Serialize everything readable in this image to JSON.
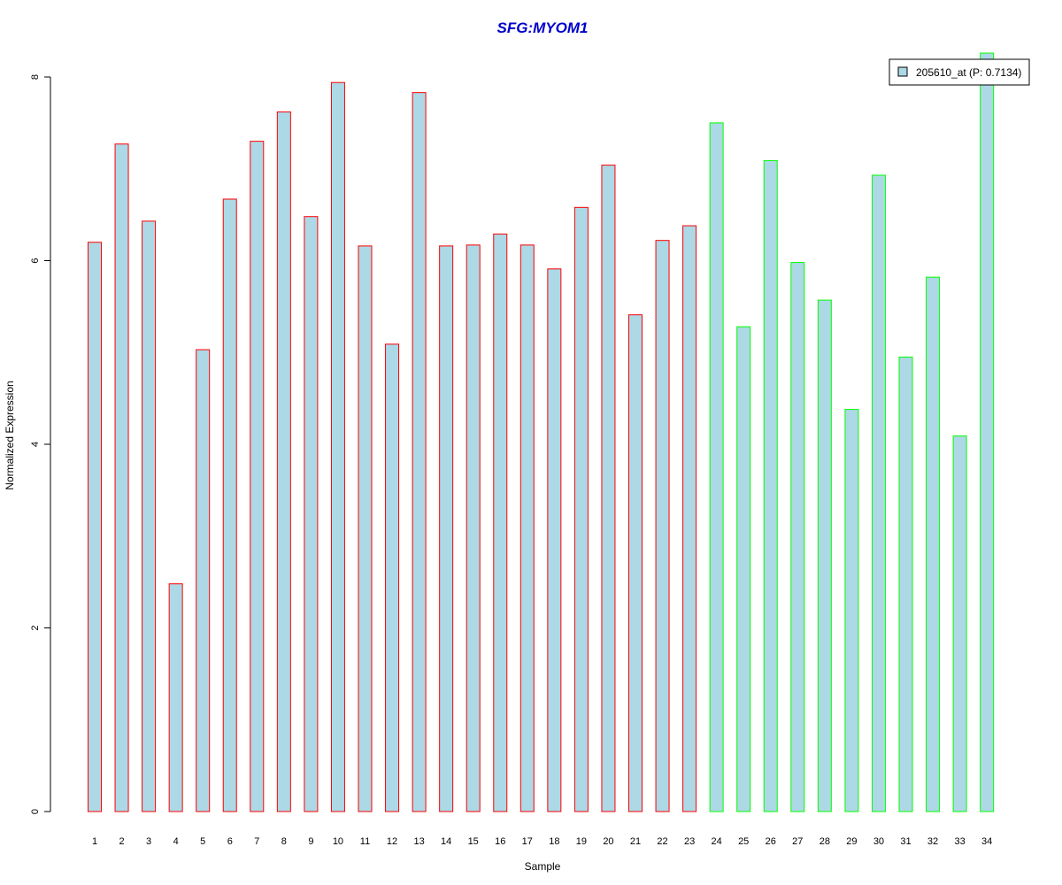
{
  "chart_data": {
    "type": "bar",
    "title": "SFG:MYOM1",
    "xlabel": "Sample",
    "ylabel": "Normalized Expression",
    "categories": [
      "1",
      "2",
      "3",
      "4",
      "5",
      "6",
      "7",
      "8",
      "9",
      "10",
      "11",
      "12",
      "13",
      "14",
      "15",
      "16",
      "17",
      "18",
      "19",
      "20",
      "21",
      "22",
      "23",
      "24",
      "25",
      "26",
      "27",
      "28",
      "29",
      "30",
      "31",
      "32",
      "33",
      "34"
    ],
    "series": [
      {
        "name": "205610_at (P: 0.7134)",
        "values": [
          6.2,
          7.27,
          6.43,
          2.48,
          5.03,
          6.67,
          7.3,
          7.62,
          6.48,
          7.94,
          6.16,
          5.09,
          7.83,
          6.16,
          6.17,
          6.29,
          6.17,
          5.91,
          6.58,
          7.04,
          5.41,
          6.22,
          6.38,
          7.5,
          5.28,
          7.09,
          5.98,
          5.57,
          4.38,
          6.93,
          4.95,
          5.82,
          4.09,
          8.26
        ]
      }
    ],
    "group_colors": [
      "red",
      "red",
      "red",
      "red",
      "red",
      "red",
      "red",
      "red",
      "red",
      "red",
      "red",
      "red",
      "red",
      "red",
      "red",
      "red",
      "red",
      "red",
      "red",
      "red",
      "red",
      "red",
      "red",
      "green",
      "green",
      "green",
      "green",
      "green",
      "green",
      "green",
      "green",
      "green",
      "green",
      "green"
    ],
    "yticks": [
      0,
      2,
      4,
      6,
      8
    ],
    "ylim": [
      0,
      8.26
    ],
    "legend_position": "top-right",
    "grid": false,
    "colors": {
      "bar_fill": "#add8e6",
      "red": "#ff0000",
      "green": "#00ff00",
      "title": "#0000cd"
    }
  }
}
